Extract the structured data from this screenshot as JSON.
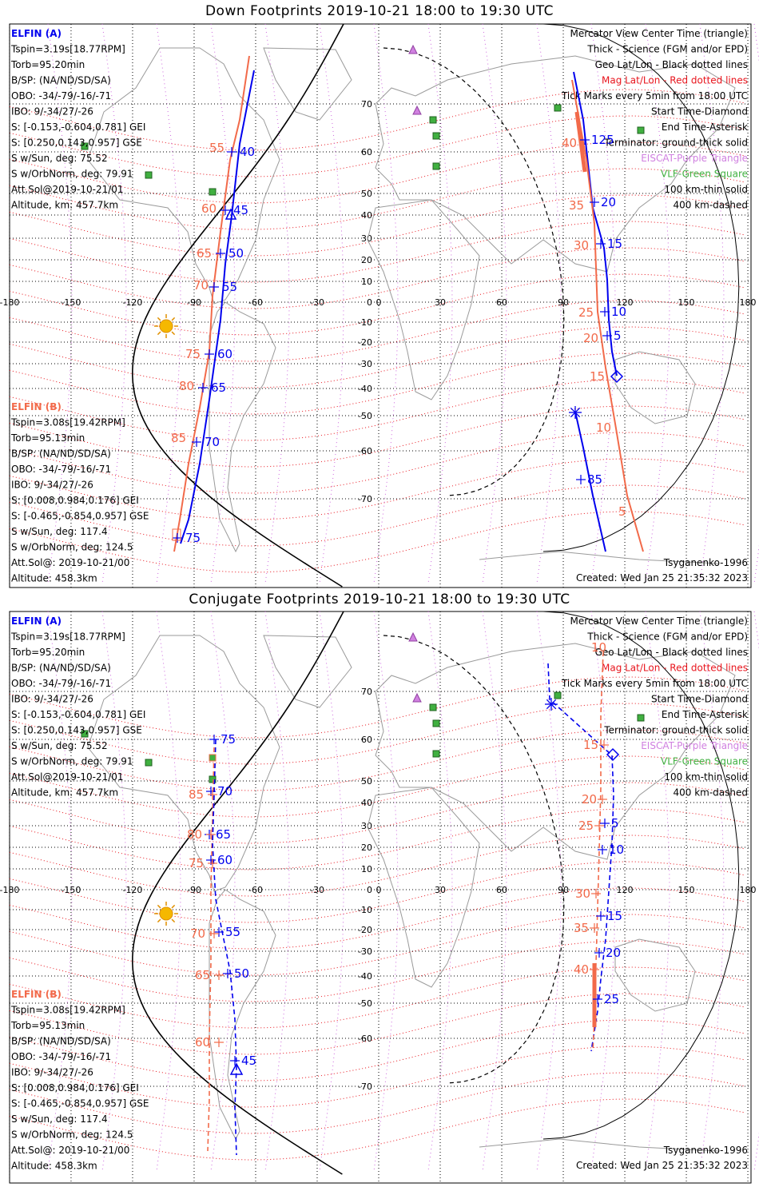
{
  "panels": [
    {
      "title": "Down Footprints 2019-10-21 18:00 to 19:30 UTC",
      "a_info": [
        "ELFIN (A)",
        "Tspin=3.19s[18.77RPM]",
        "Torb=95.20min",
        "B/SP: (NA/ND/SD/SA)",
        "OBO: -34/-79/-16/-71",
        "IBO: 9/-34/27/-26",
        "S: [-0.153,-0.604,0.781] GEI",
        "S: [0.250,0.143,0.957] GSE",
        "S w/Sun, deg: 75.52",
        "S w/OrbNorm, deg: 79.91",
        "Att.Sol@2019-10-21/01",
        "Altitude, km: 457.7km"
      ],
      "b_info": [
        "ELFIN (B)",
        "Tspin=3.08s[19.42RPM]",
        "Torb=95.13min",
        "B/SP: (NA/ND/SD/SA)",
        "OBO: -34/-79/-16/-71",
        "IBO: 9/-34/27/-26",
        "S: [0.008,0.984,0.176] GEI",
        "S: [-0.465,-0.854,0.957] GSE",
        "S w/Sun, deg: 117.4",
        "S w/OrbNorm, deg: 124.5",
        "Att.Sol@: 2019-10-21/00",
        "Altitude: 458.3km"
      ],
      "model": "Tsyganenko-1996",
      "created": "Created: Wed Jan 25 21:35:32 2023"
    },
    {
      "title": "Conjugate Footprints 2019-10-21 18:00 to 19:30 UTC",
      "a_info": [
        "ELFIN (A)",
        "Tspin=3.19s[18.77RPM]",
        "Torb=95.20min",
        "B/SP: (NA/ND/SD/SA)",
        "OBO: -34/-79/-16/-71",
        "IBO: 9/-34/27/-26",
        "S: [-0.153,-0.604,0.781] GEI",
        "S: [0.250,0.143,0.957] GSE",
        "S w/Sun, deg: 75.52",
        "S w/OrbNorm, deg: 79.91",
        "Att.Sol@2019-10-21/01",
        "Altitude, km: 457.7km"
      ],
      "b_info": [
        "ELFIN (B)",
        "Tspin=3.08s[19.42RPM]",
        "Torb=95.13min",
        "B/SP: (NA/ND/SD/SA)",
        "OBO: -34/-79/-16/-71",
        "IBO: 9/-34/27/-26",
        "S: [0.008,0.984,0.176] GEI",
        "S: [-0.465,-0.854,0.957] GSE",
        "S w/Sun, deg: 117.4",
        "S w/OrbNorm, deg: 124.5",
        "Att.Sol@: 2019-10-21/00",
        "Altitude: 458.3km"
      ],
      "model": "Tsyganenko-1996",
      "created": "Created: Wed Jan 25 21:35:32 2023"
    }
  ],
  "legend": [
    {
      "text": "Mercator View Center Time (triangle)",
      "color": "#000000"
    },
    {
      "text": "Thick - Science (FGM and/or EPD)",
      "color": "#000000"
    },
    {
      "text": "Geo Lat/Lon - Black dotted lines",
      "color": "#000000"
    },
    {
      "text": "Mag Lat/Lon - Red dotted lines",
      "color": "#e8141c"
    },
    {
      "text": "Tick Marks every 5min from 18:00 UTC",
      "color": "#000000"
    },
    {
      "text": "Start Time-Diamond",
      "color": "#000000"
    },
    {
      "text": "End Time-Asterisk",
      "color": "#000000"
    },
    {
      "text": "Terminator: ground-thick solid",
      "color": "#000000"
    },
    {
      "text": "EISCAT-Purple Triangle",
      "color": "#d080e0"
    },
    {
      "text": "VLF-Green Square",
      "color": "#40b040"
    },
    {
      "text": "100 km-thin solid",
      "color": "#000000"
    },
    {
      "text": "400 km-dashed",
      "color": "#000000"
    }
  ],
  "lon_ticks": [
    "-180",
    "-150",
    "-120",
    "-90",
    "-60",
    "-30",
    "0",
    "30",
    "60",
    "90",
    "120",
    "150",
    "180"
  ],
  "lat_ticks": [
    "70",
    "60",
    "50",
    "40",
    "30",
    "20",
    "10",
    "0",
    "-10",
    "-20",
    "-30",
    "-40",
    "-50",
    "-60",
    "-70"
  ],
  "colors": {
    "elfin_a": "#0000ee",
    "elfin_b": "#f26a4a",
    "grid": "#000000",
    "mag": "#e8141c"
  },
  "labels": {
    "down_a": [
      "125",
      "20",
      "15",
      "10",
      "5",
      "85",
      "40",
      "45",
      "50",
      "55",
      "60",
      "65",
      "70",
      "75"
    ],
    "down_b": [
      "40",
      "35",
      "30",
      "25",
      "20",
      "15",
      "10",
      "5",
      "55",
      "60",
      "65",
      "70",
      "75",
      "80",
      "85"
    ],
    "conj_a": [
      "75",
      "70",
      "65",
      "60",
      "55",
      "50",
      "45",
      "5",
      "10",
      "15",
      "20",
      "25"
    ],
    "conj_b": [
      "85",
      "80",
      "75",
      "70",
      "65",
      "60",
      "15",
      "20",
      "25",
      "30",
      "35",
      "40",
      "10"
    ]
  }
}
